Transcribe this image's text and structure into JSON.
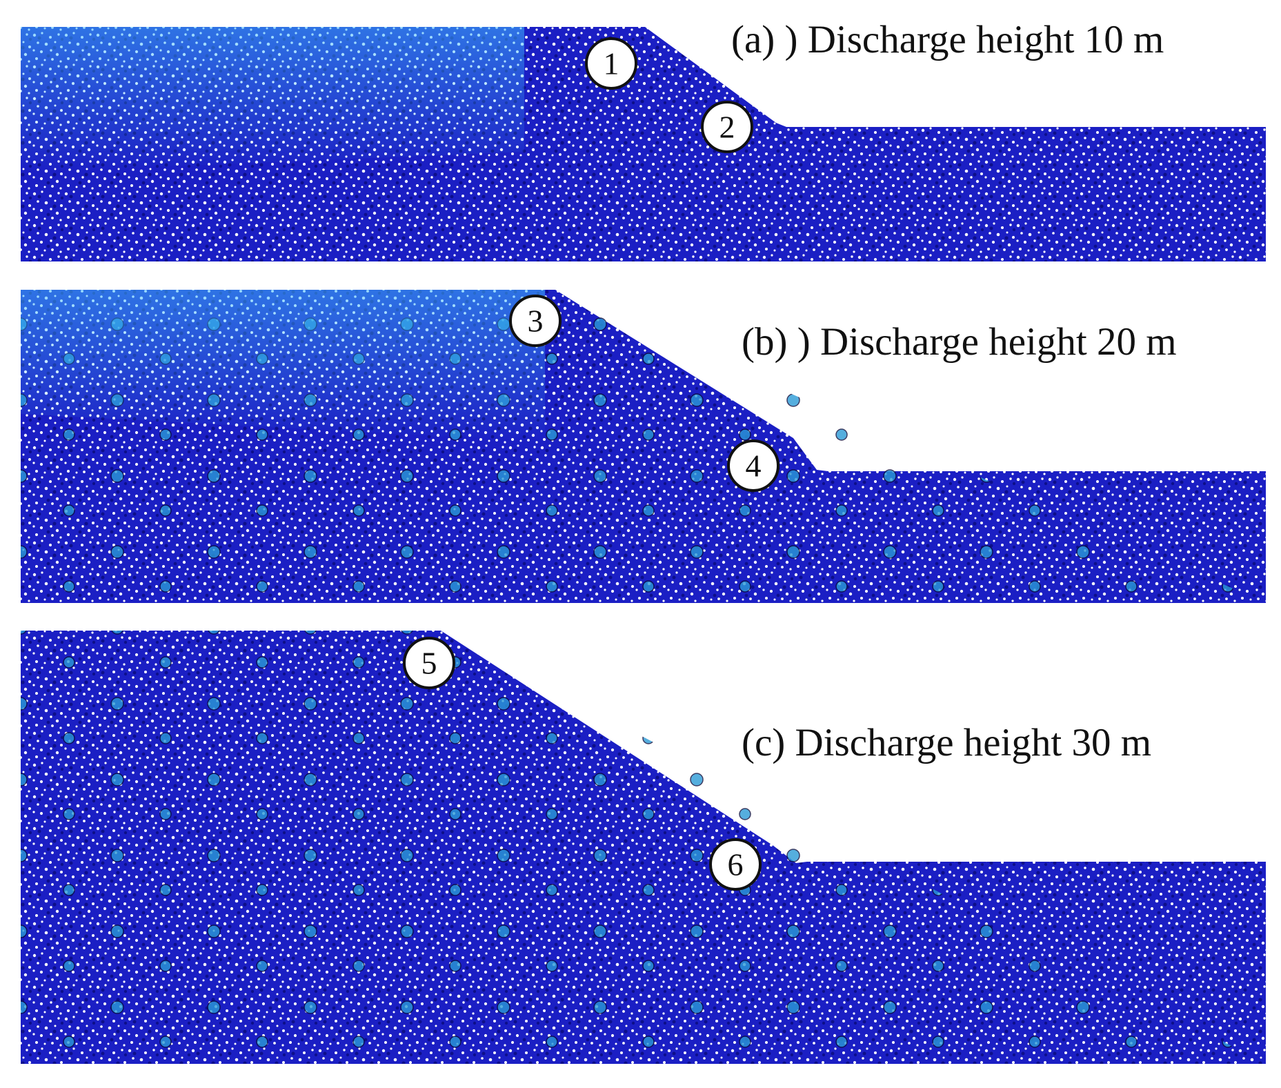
{
  "panels": [
    {
      "label": "(a) ) Discharge height 10 m",
      "markers": [
        "1",
        "2"
      ]
    },
    {
      "label": "(b) ) Discharge height 20 m",
      "markers": [
        "3",
        "4"
      ]
    },
    {
      "label": "(c) Discharge height 30 m",
      "markers": [
        "5",
        "6"
      ]
    }
  ]
}
